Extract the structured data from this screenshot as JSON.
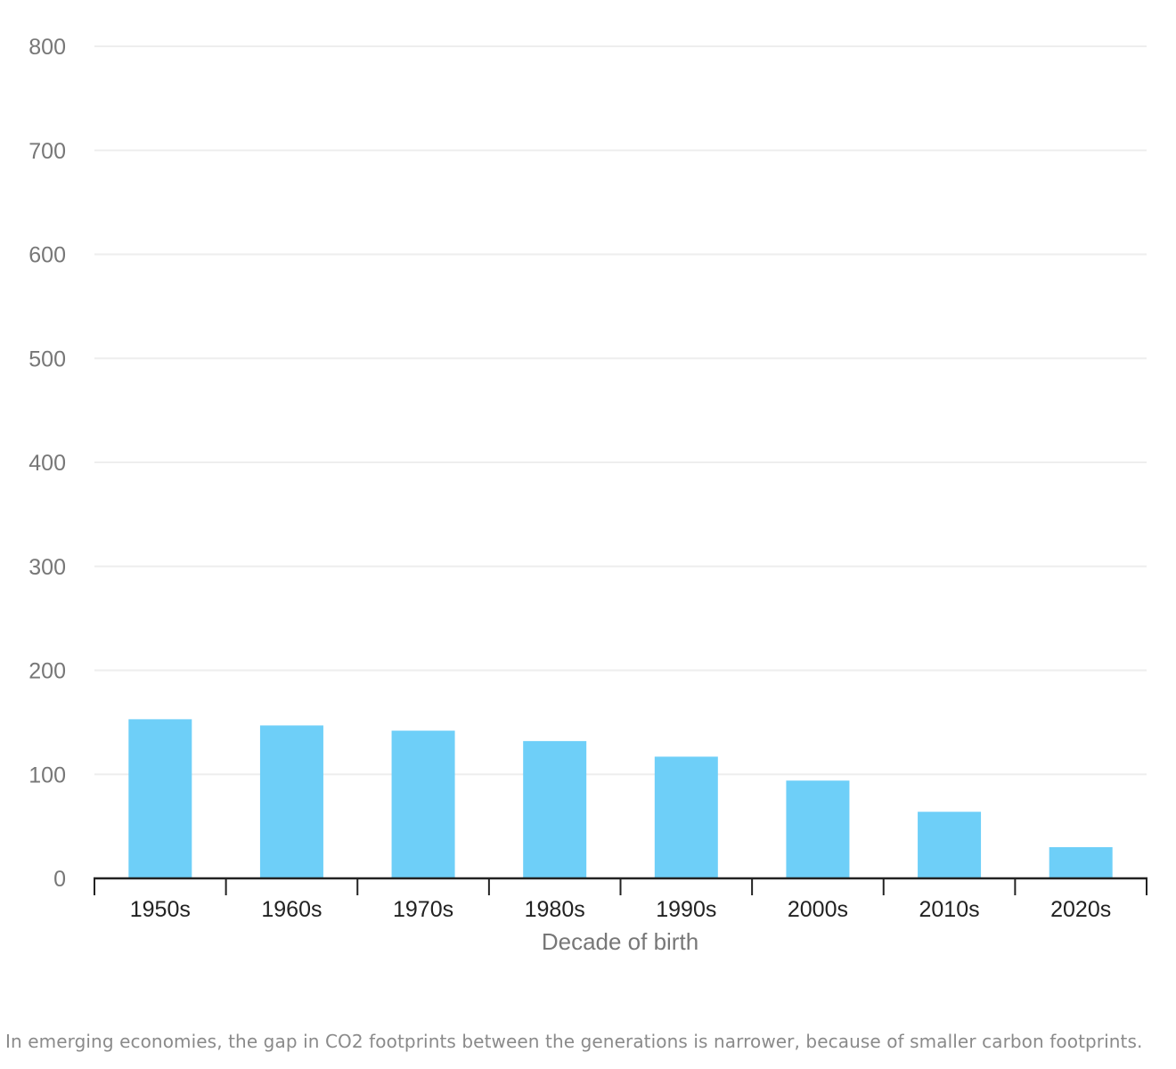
{
  "chart_data": {
    "type": "bar",
    "categories": [
      "1950s",
      "1960s",
      "1970s",
      "1980s",
      "1990s",
      "2000s",
      "2010s",
      "2020s"
    ],
    "values": [
      153,
      147,
      142,
      132,
      117,
      94,
      64,
      30
    ],
    "xlabel": "Decade of birth",
    "ylabel": "",
    "ylim": [
      0,
      800
    ],
    "yticks": [
      0,
      100,
      200,
      300,
      400,
      500,
      600,
      700,
      800
    ],
    "grid": true,
    "bar_color": "#6ecff8",
    "gridline_color": "#eeeeee",
    "axis_color": "#222222"
  },
  "caption": "In emerging economies, the gap in CO2 footprints between the generations is narrower, because of smaller carbon footprints."
}
